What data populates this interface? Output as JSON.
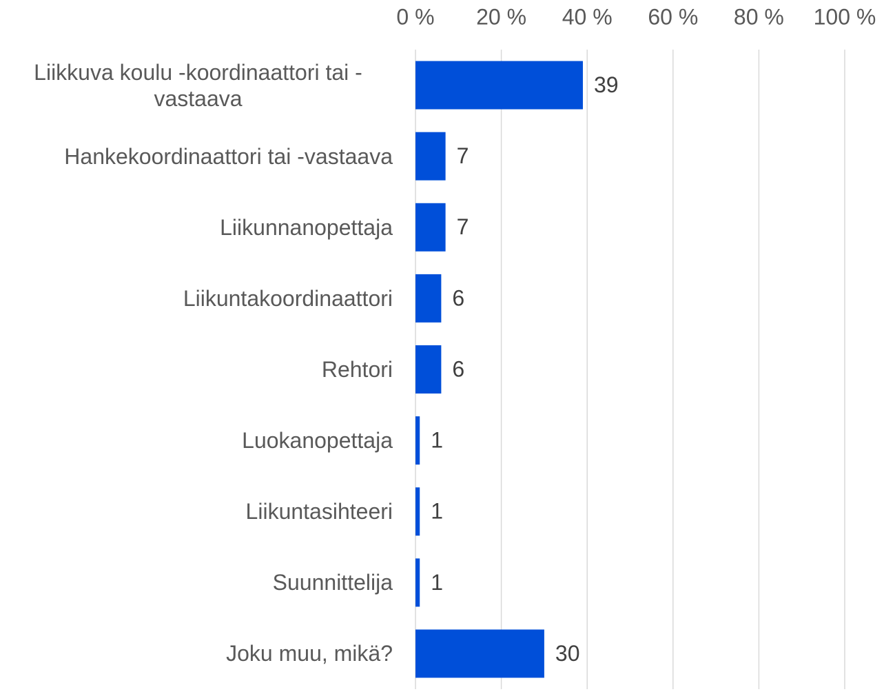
{
  "chart_data": {
    "type": "bar",
    "orientation": "horizontal",
    "categories": [
      "Liikkuva koulu -koordinaattori tai -vastaava",
      "Hankekoordinaattori tai -vastaava",
      "Liikunnanopettaja",
      "Liikuntakoordinaattori",
      "Rehtori",
      "Luokanopettaja",
      "Liikuntasihteeri",
      "Suunnittelija",
      "Joku muu, mikä?"
    ],
    "values": [
      39,
      7,
      7,
      6,
      6,
      1,
      1,
      1,
      30
    ],
    "color": "#004fd9",
    "xlim": [
      0,
      100
    ],
    "xticks": [
      {
        "value": 0,
        "label": "0 %"
      },
      {
        "value": 20,
        "label": "20 %"
      },
      {
        "value": 40,
        "label": "40 %"
      },
      {
        "value": 60,
        "label": "60 %"
      },
      {
        "value": 80,
        "label": "80 %"
      },
      {
        "value": 100,
        "label": "100 %"
      }
    ],
    "grid": true
  }
}
